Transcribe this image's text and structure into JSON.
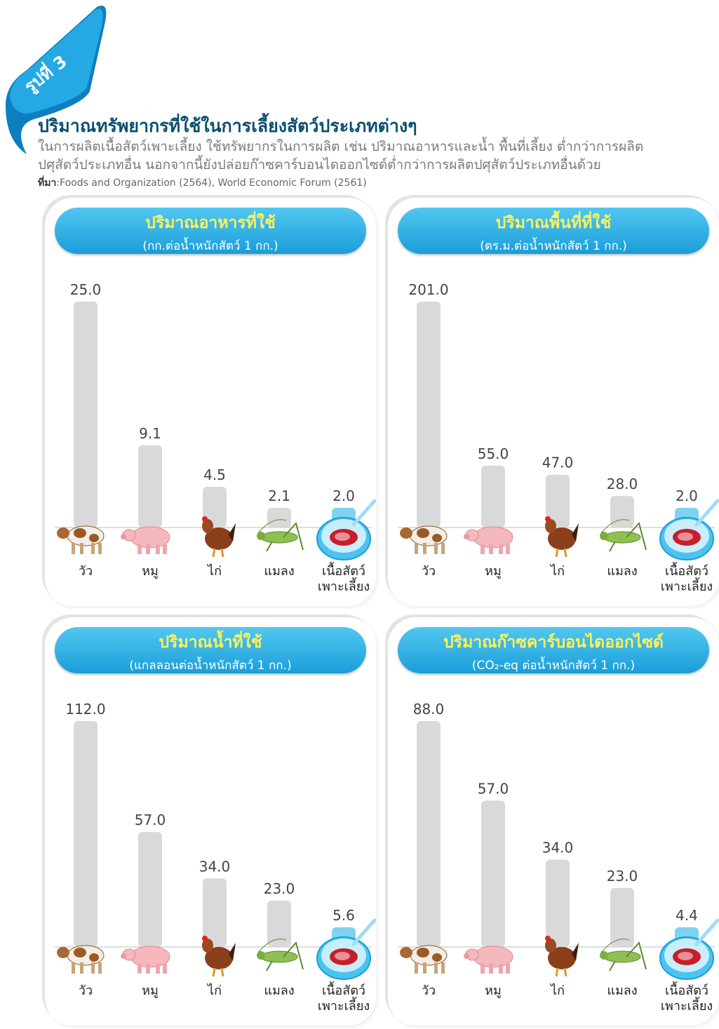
{
  "figure": {
    "tag": "รูปที่ 3",
    "title": "ปริมาณทรัพยากรที่ใช้ในการเลี้ยงสัตว์ประเภทต่างๆ",
    "subtitle_line1": "ในการผลิตเนื้อสัตว์เพาะเลี้ยง ใช้ทรัพยากรในการผลิต เช่น ปริมาณอาหารและน้ำ พื้นที่เลี้ยง ต่ำกว่าการผลิต",
    "subtitle_line2": "ปศุสัตว์ประเภทอื่น นอกจากนี้ยังปล่อยก๊าซคาร์บอนไดออกไซด์ต่ำกว่าการผลิตปศุสัตว์ประเภทอื่นด้วย",
    "source_label": "ที่มา",
    "source_text": ":Foods and Organization (2564), World Economic Forum (2561)"
  },
  "colors": {
    "bar": "#d9d9d9",
    "bar_cultured": "#7fd3f2",
    "header_gradient_top": "#52c7f0",
    "header_gradient_bottom": "#1a9ed9",
    "panel_title": "#fff15a",
    "figure_title": "#0b4f70"
  },
  "category_icons": [
    "cow-icon",
    "pig-icon",
    "chicken-icon",
    "cricket-icon",
    "cultured-meat-dish-icon"
  ],
  "chart_data": [
    {
      "type": "bar",
      "title": "ปริมาณอาหารที่ใช้",
      "unit": "(กก.ต่อน้ำหนักสัตว์ 1 กก.)",
      "categories": [
        "วัว",
        "หมู",
        "ไก่",
        "แมลง",
        "เนื้อสัตว์\nเพาะเลี้ยง"
      ],
      "values": [
        25.0,
        9.1,
        4.5,
        2.1,
        2.0
      ],
      "labels": [
        "25.0",
        "9.1",
        "4.5",
        "2.1",
        "2.0"
      ],
      "ylim": [
        0,
        25
      ],
      "grid": false,
      "legend": "none"
    },
    {
      "type": "bar",
      "title": "ปริมาณพื้นที่ที่ใช้",
      "unit": "(ตร.ม.ต่อน้ำหนักสัตว์ 1 กก.)",
      "categories": [
        "วัว",
        "หมู",
        "ไก่",
        "แมลง",
        "เนื้อสัตว์\nเพาะเลี้ยง"
      ],
      "values": [
        201.0,
        55.0,
        47.0,
        28.0,
        2.0
      ],
      "labels": [
        "201.0",
        "55.0",
        "47.0",
        "28.0",
        "2.0"
      ],
      "ylim": [
        0,
        201
      ],
      "grid": false,
      "legend": "none"
    },
    {
      "type": "bar",
      "title": "ปริมาณน้ำที่ใช้",
      "unit": "(แกลลอนต่อน้ำหนักสัตว์ 1 กก.)",
      "categories": [
        "วัว",
        "หมู",
        "ไก่",
        "แมลง",
        "เนื้อสัตว์\nเพาะเลี้ยง"
      ],
      "values": [
        112.0,
        57.0,
        34.0,
        23.0,
        5.6
      ],
      "labels": [
        "112.0",
        "57.0",
        "34.0",
        "23.0",
        "5.6"
      ],
      "ylim": [
        0,
        112
      ],
      "grid": false,
      "legend": "none"
    },
    {
      "type": "bar",
      "title": "ปริมาณก๊าซคาร์บอนไดออกไซด์",
      "unit": "(CO₂-eq ต่อน้ำหนักสัตว์ 1 กก.)",
      "categories": [
        "วัว",
        "หมู",
        "ไก่",
        "แมลง",
        "เนื้อสัตว์\nเพาะเลี้ยง"
      ],
      "values": [
        88.0,
        57.0,
        34.0,
        23.0,
        4.4
      ],
      "labels": [
        "88.0",
        "57.0",
        "34.0",
        "23.0",
        "4.4"
      ],
      "ylim": [
        0,
        88
      ],
      "grid": false,
      "legend": "none"
    }
  ]
}
